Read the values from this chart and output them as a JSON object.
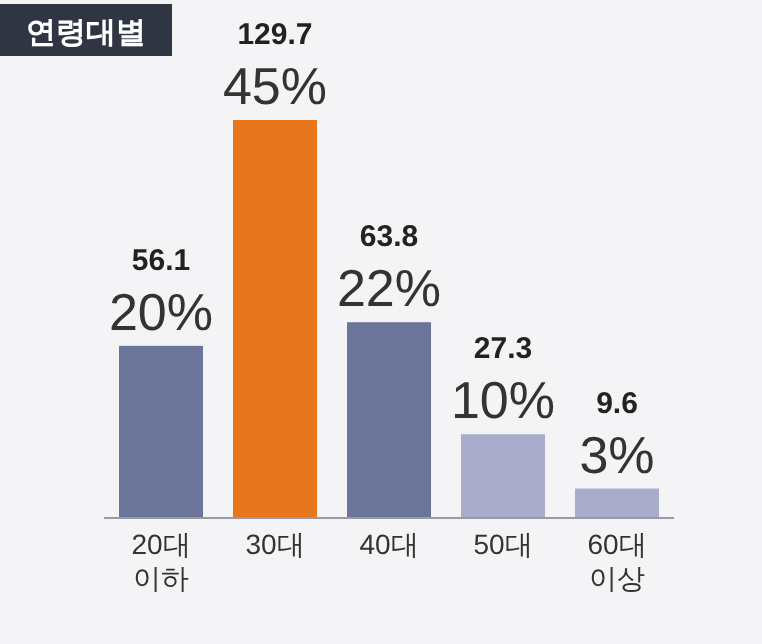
{
  "chart_data": {
    "type": "bar",
    "title": "연령대별",
    "categories": [
      "20대 이하",
      "30대",
      "40대",
      "50대",
      "60대 이상"
    ],
    "values": [
      56.1,
      129.7,
      63.8,
      27.3,
      9.6
    ],
    "colors": [
      "#6b7599",
      "#e8761f",
      "#6b7599",
      "#a8abc9",
      "#a8abc9"
    ],
    "data_labels": true,
    "annotations": [
      {
        "text": "20%",
        "x": "20대 이하",
        "y": 56.1
      },
      {
        "text": "45%",
        "x": "30대",
        "y": 129.7
      },
      {
        "text": "22%",
        "x": "40대",
        "y": 63.8
      },
      {
        "text": "10%",
        "x": "50대",
        "y": 27.3
      },
      {
        "text": "3%",
        "x": "60대 이상",
        "y": 9.6
      }
    ]
  }
}
